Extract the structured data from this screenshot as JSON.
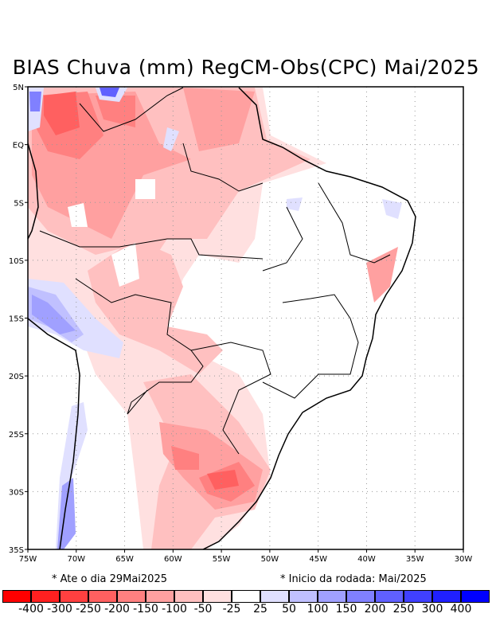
{
  "title": "BIAS Chuva (mm) RegCM-Obs(CPC) Mai/2025",
  "map": {
    "lon_range": [
      -75,
      -30
    ],
    "lat_range": [
      -35,
      5
    ],
    "x_ticks": [
      "75W",
      "70W",
      "65W",
      "60W",
      "55W",
      "50W",
      "45W",
      "40W",
      "35W",
      "30W"
    ],
    "y_ticks": [
      "5N",
      "EQ",
      "5S",
      "10S",
      "15S",
      "20S",
      "25S",
      "30S",
      "35S"
    ]
  },
  "notes": {
    "left": "* Ate o dia 29Mai2025",
    "right": "* Inicio da rodada: Mai/2025"
  },
  "colorbar": {
    "colors": [
      "#ff0000",
      "#ff2020",
      "#ff4040",
      "#ff6060",
      "#ff8080",
      "#ffa0a0",
      "#ffc0c0",
      "#ffe0e0",
      "#ffffff",
      "#e0e0ff",
      "#c0c0ff",
      "#a0a0ff",
      "#8080ff",
      "#6060ff",
      "#4040ff",
      "#2020ff",
      "#0000ff"
    ],
    "labels": [
      "-400",
      "-300",
      "-250",
      "-200",
      "-150",
      "-100",
      "-50",
      "-25",
      "25",
      "50",
      "100",
      "150",
      "200",
      "250",
      "300",
      "400"
    ]
  }
}
